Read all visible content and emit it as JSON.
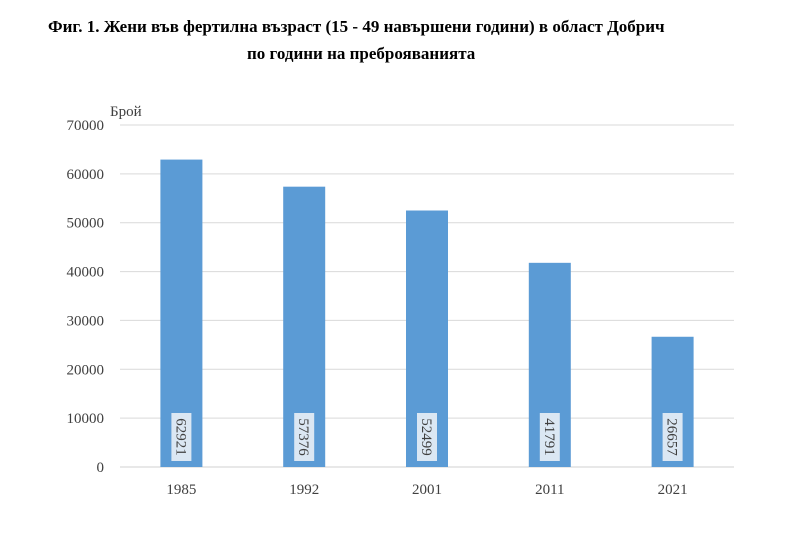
{
  "title_line1": "Фиг. 1. Жени във фертилна възраст (15 - 49 навършени години) в област Добрич",
  "title_line2": "по години на преброяванията",
  "chart_data": {
    "type": "bar",
    "title": "Фиг. 1. Жени във фертилна възраст (15 - 49 навършени години) в област Добрич по години на преброяванията",
    "ylabel": "Брой",
    "xlabel": "",
    "categories": [
      "1985",
      "1992",
      "2001",
      "2011",
      "2021"
    ],
    "values": [
      62921,
      57376,
      52499,
      41791,
      26657
    ],
    "ylim": [
      0,
      70000
    ],
    "yticks": [
      0,
      10000,
      20000,
      30000,
      40000,
      50000,
      60000,
      70000
    ],
    "grid": true,
    "legend": "none",
    "bar_color": "#5b9bd5",
    "data_labels": "inside-base-rotated"
  }
}
